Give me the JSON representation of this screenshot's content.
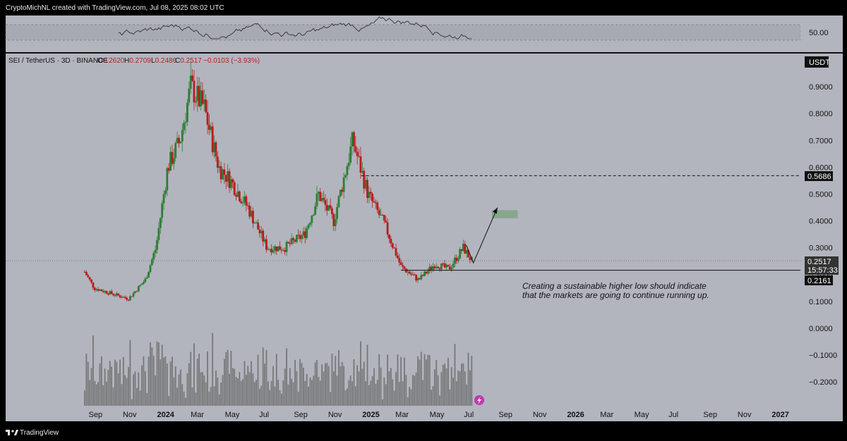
{
  "credit": "CryptoMichNL created with TradingView.com, Jul 08, 2025 08:02 UTC",
  "brand": "TradingView",
  "colors": {
    "background": "#000000",
    "panel": "#b2b5be",
    "up": "#2e7d32",
    "down": "#b71c1c",
    "box": "#7fa585"
  },
  "rsi": {
    "label": "50.00"
  },
  "symbol": {
    "pair": "SEI / TetherUS · 3D · BINANCE",
    "open_label": "O",
    "open": "0.2620",
    "high_label": "H",
    "high": "0.2709",
    "low_label": "L",
    "low": "0.2486",
    "close_label": "C",
    "close": "0.2517",
    "change": "−0.0103 (−3.93%)"
  },
  "currency_badge": "USDT",
  "price_axis": {
    "ticks": [
      "0.9000",
      "0.8000",
      "0.7000",
      "0.6000",
      "0.5000",
      "0.4000",
      "0.3000",
      "0.2000",
      "0.1000",
      "0.0000",
      "−0.1000",
      "−0.2000"
    ]
  },
  "badges": {
    "resistance": "0.5686",
    "current_price": "0.2517",
    "countdown": "15:57:33",
    "support": "0.2161"
  },
  "annotation": {
    "line1": "Creating a sustainable higher low should indicate",
    "line2": "that the markets are going to continue running up."
  },
  "time_axis": {
    "labels": [
      "Sep",
      "Nov",
      "2024",
      "Mar",
      "May",
      "Jul",
      "Sep",
      "Nov",
      "2025",
      "Mar",
      "May",
      "Jul",
      "Sep",
      "Nov",
      "2026",
      "Mar",
      "May",
      "Jul",
      "Sep",
      "Nov",
      "2027"
    ]
  },
  "chart_data": {
    "type": "candlestick",
    "pair": "SEI / TetherUS",
    "interval": "3D",
    "exchange": "BINANCE",
    "x": [
      "2023-08-15",
      "2023-09-01",
      "2023-10-01",
      "2023-11-01",
      "2023-12-01",
      "2023-12-20",
      "2024-01-10",
      "2024-02-01",
      "2024-02-20",
      "2024-03-15",
      "2024-04-10",
      "2024-05-01",
      "2024-06-01",
      "2024-07-05",
      "2024-08-05",
      "2024-09-10",
      "2024-10-05",
      "2024-11-01",
      "2024-12-05",
      "2025-01-01",
      "2025-02-01",
      "2025-03-01",
      "2025-04-01",
      "2025-05-01",
      "2025-05-25",
      "2025-06-20",
      "2025-07-05"
    ],
    "close": [
      0.21,
      0.15,
      0.13,
      0.11,
      0.18,
      0.3,
      0.6,
      0.7,
      0.9,
      0.82,
      0.6,
      0.55,
      0.45,
      0.3,
      0.3,
      0.35,
      0.5,
      0.4,
      0.7,
      0.5,
      0.38,
      0.23,
      0.18,
      0.24,
      0.22,
      0.3,
      0.2517
    ],
    "projection": {
      "from": {
        "date": "2025-07-08",
        "price": 0.2517
      },
      "to": {
        "date": "2025-08-20",
        "price": 0.45
      }
    },
    "target_zone": {
      "from_date": "2025-08-10",
      "to_date": "2025-09-25",
      "low": 0.41,
      "high": 0.44
    },
    "support": 0.2161,
    "resistance": 0.5686,
    "current": 0.2517,
    "ylim": [
      -0.3,
      1.0
    ],
    "volume": "shown as bars at bottom, peaks near 2024-02 and 2025-06",
    "rsi_level": 50
  }
}
